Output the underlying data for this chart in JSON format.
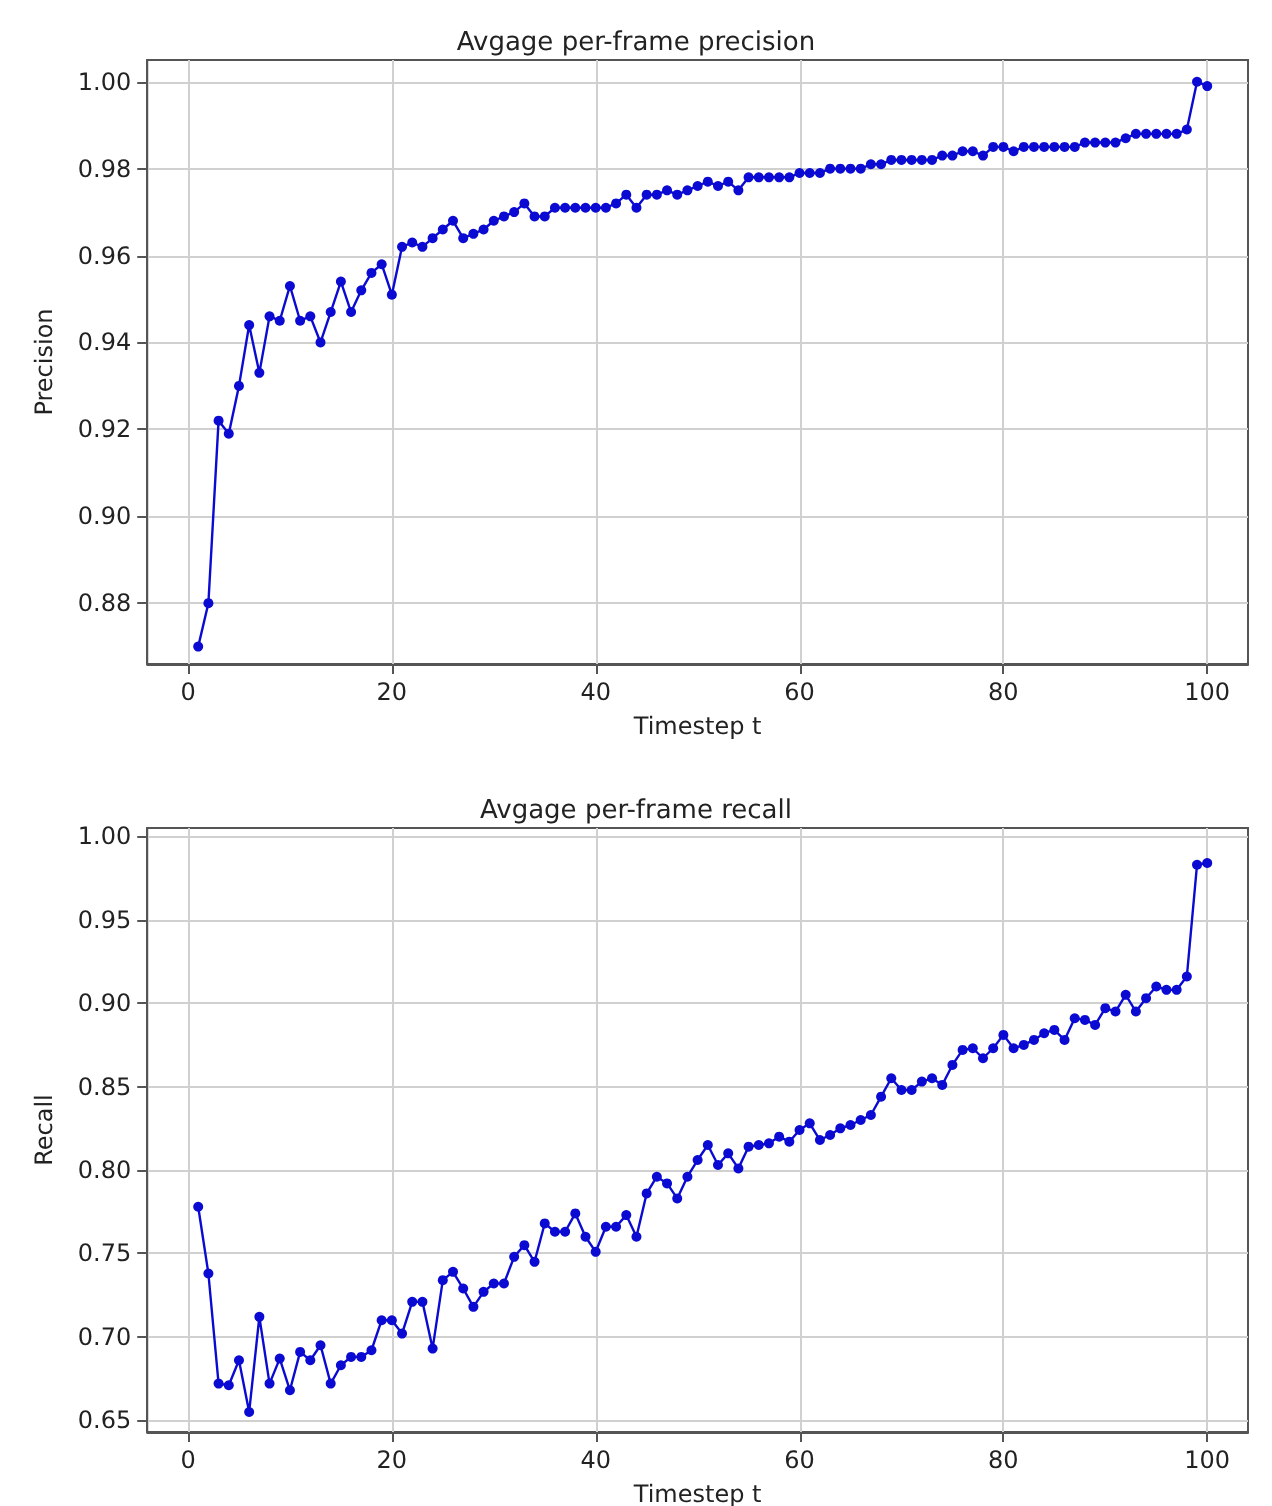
{
  "chart_data": [
    {
      "type": "line",
      "title": "Avgage per-frame precision",
      "xlabel": "Timestep t",
      "ylabel": "Precision",
      "grid": true,
      "marker": "circle",
      "line_style": "solid",
      "xlim": [
        -4,
        104
      ],
      "xticks": [
        0,
        20,
        40,
        60,
        80,
        100
      ],
      "ylim": [
        0.866,
        1.005
      ],
      "yticks": [
        {
          "value": 0.88,
          "label": "0.88"
        },
        {
          "value": 0.9,
          "label": "0.90"
        },
        {
          "value": 0.92,
          "label": "0.92"
        },
        {
          "value": 0.94,
          "label": "0.94"
        },
        {
          "value": 0.96,
          "label": "0.96"
        },
        {
          "value": 0.98,
          "label": "0.98"
        },
        {
          "value": 1.0,
          "label": "1.00"
        }
      ],
      "x": [
        1,
        2,
        3,
        4,
        5,
        6,
        7,
        8,
        9,
        10,
        11,
        12,
        13,
        14,
        15,
        16,
        17,
        18,
        19,
        20,
        21,
        22,
        23,
        24,
        25,
        26,
        27,
        28,
        29,
        30,
        31,
        32,
        33,
        34,
        35,
        36,
        37,
        38,
        39,
        40,
        41,
        42,
        43,
        44,
        45,
        46,
        47,
        48,
        49,
        50,
        51,
        52,
        53,
        54,
        55,
        56,
        57,
        58,
        59,
        60,
        61,
        62,
        63,
        64,
        65,
        66,
        67,
        68,
        69,
        70,
        71,
        72,
        73,
        74,
        75,
        76,
        77,
        78,
        79,
        80,
        81,
        82,
        83,
        84,
        85,
        86,
        87,
        88,
        89,
        90,
        91,
        92,
        93,
        94,
        95,
        96,
        97,
        98,
        99,
        100
      ],
      "series": [
        {
          "color": "#0a0ad2",
          "values": [
            0.87,
            0.88,
            0.922,
            0.919,
            0.93,
            0.944,
            0.933,
            0.946,
            0.945,
            0.953,
            0.945,
            0.946,
            0.94,
            0.947,
            0.954,
            0.947,
            0.952,
            0.956,
            0.958,
            0.951,
            0.962,
            0.963,
            0.962,
            0.964,
            0.966,
            0.968,
            0.964,
            0.965,
            0.966,
            0.968,
            0.969,
            0.97,
            0.972,
            0.969,
            0.969,
            0.971,
            0.971,
            0.971,
            0.971,
            0.971,
            0.971,
            0.972,
            0.974,
            0.971,
            0.974,
            0.974,
            0.975,
            0.974,
            0.975,
            0.976,
            0.977,
            0.976,
            0.977,
            0.975,
            0.978,
            0.978,
            0.978,
            0.978,
            0.978,
            0.979,
            0.979,
            0.979,
            0.98,
            0.98,
            0.98,
            0.98,
            0.981,
            0.981,
            0.982,
            0.982,
            0.982,
            0.982,
            0.982,
            0.983,
            0.983,
            0.984,
            0.984,
            0.983,
            0.985,
            0.985,
            0.984,
            0.985,
            0.985,
            0.985,
            0.985,
            0.985,
            0.985,
            0.986,
            0.986,
            0.986,
            0.986,
            0.987,
            0.988,
            0.988,
            0.988,
            0.988,
            0.988,
            0.989,
            1.0,
            0.999
          ]
        }
      ]
    },
    {
      "type": "line",
      "title": "Avgage per-frame recall",
      "xlabel": "Timestep t",
      "ylabel": "Recall",
      "grid": true,
      "marker": "circle",
      "line_style": "solid",
      "xlim": [
        -4,
        104
      ],
      "xticks": [
        0,
        20,
        40,
        60,
        80,
        100
      ],
      "ylim": [
        0.643,
        1.005
      ],
      "yticks": [
        {
          "value": 0.65,
          "label": "0.65"
        },
        {
          "value": 0.7,
          "label": "0.70"
        },
        {
          "value": 0.75,
          "label": "0.75"
        },
        {
          "value": 0.8,
          "label": "0.80"
        },
        {
          "value": 0.85,
          "label": "0.85"
        },
        {
          "value": 0.9,
          "label": "0.90"
        },
        {
          "value": 0.95,
          "label": "0.95"
        },
        {
          "value": 1.0,
          "label": "1.00"
        }
      ],
      "x": [
        1,
        2,
        3,
        4,
        5,
        6,
        7,
        8,
        9,
        10,
        11,
        12,
        13,
        14,
        15,
        16,
        17,
        18,
        19,
        20,
        21,
        22,
        23,
        24,
        25,
        26,
        27,
        28,
        29,
        30,
        31,
        32,
        33,
        34,
        35,
        36,
        37,
        38,
        39,
        40,
        41,
        42,
        43,
        44,
        45,
        46,
        47,
        48,
        49,
        50,
        51,
        52,
        53,
        54,
        55,
        56,
        57,
        58,
        59,
        60,
        61,
        62,
        63,
        64,
        65,
        66,
        67,
        68,
        69,
        70,
        71,
        72,
        73,
        74,
        75,
        76,
        77,
        78,
        79,
        80,
        81,
        82,
        83,
        84,
        85,
        86,
        87,
        88,
        89,
        90,
        91,
        92,
        93,
        94,
        95,
        96,
        97,
        98,
        99,
        100
      ],
      "series": [
        {
          "color": "#0a0ad2",
          "values": [
            0.778,
            0.738,
            0.672,
            0.671,
            0.686,
            0.655,
            0.712,
            0.672,
            0.687,
            0.668,
            0.691,
            0.686,
            0.695,
            0.672,
            0.683,
            0.688,
            0.688,
            0.692,
            0.71,
            0.71,
            0.702,
            0.721,
            0.721,
            0.693,
            0.734,
            0.739,
            0.729,
            0.718,
            0.727,
            0.732,
            0.732,
            0.748,
            0.755,
            0.745,
            0.768,
            0.763,
            0.763,
            0.774,
            0.76,
            0.751,
            0.766,
            0.766,
            0.773,
            0.76,
            0.786,
            0.796,
            0.792,
            0.783,
            0.796,
            0.806,
            0.815,
            0.803,
            0.81,
            0.801,
            0.814,
            0.815,
            0.816,
            0.82,
            0.817,
            0.824,
            0.828,
            0.818,
            0.821,
            0.825,
            0.827,
            0.83,
            0.833,
            0.844,
            0.855,
            0.848,
            0.848,
            0.853,
            0.855,
            0.851,
            0.863,
            0.872,
            0.873,
            0.867,
            0.873,
            0.881,
            0.873,
            0.875,
            0.878,
            0.882,
            0.884,
            0.878,
            0.891,
            0.89,
            0.887,
            0.897,
            0.895,
            0.905,
            0.895,
            0.903,
            0.91,
            0.908,
            0.908,
            0.916,
            0.983,
            0.984
          ]
        }
      ]
    }
  ]
}
